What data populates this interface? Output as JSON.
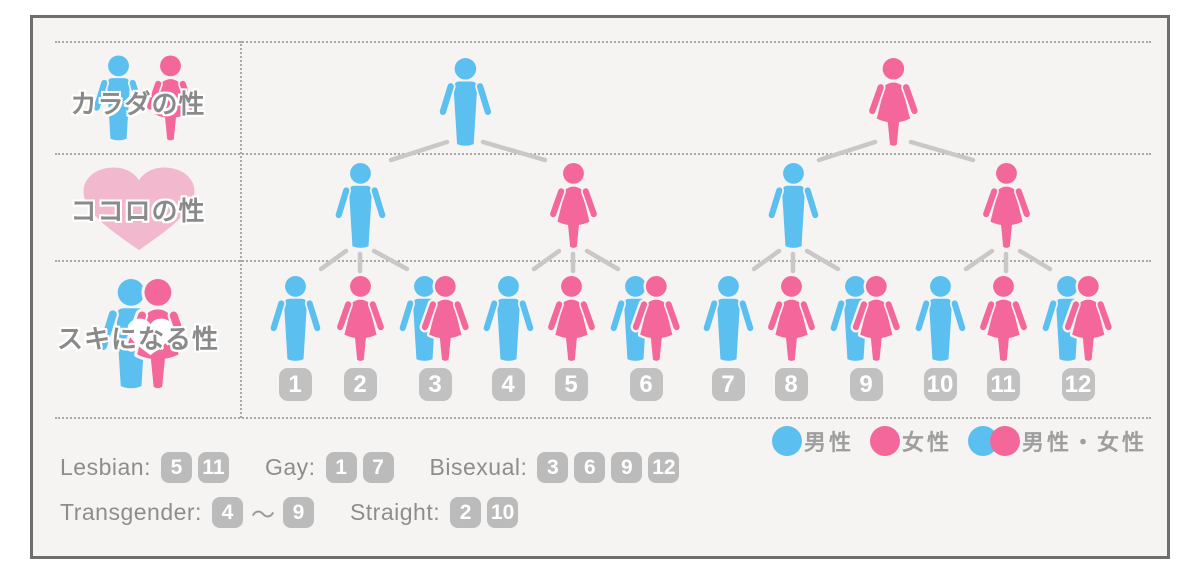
{
  "colors": {
    "male": "#5BC0F0",
    "female": "#F4679B",
    "heart_light": "#F2B9CE",
    "white_heart": "#FFFFFF",
    "connector": "#C8C8C8",
    "number_badge": "#C1C1C1",
    "text_gray": "#8D8D8D",
    "board_background": "#F6F4F2",
    "board_border": "#6E6E6E"
  },
  "rows": [
    {
      "id": "body",
      "label": "カラダの性"
    },
    {
      "id": "heart",
      "label": "ココロの性"
    },
    {
      "id": "attraction",
      "label": "スキになる性"
    }
  ],
  "tree": {
    "level1": [
      "male",
      "female"
    ],
    "level2": [
      "male",
      "female",
      "male",
      "female"
    ],
    "level3": [
      {
        "num": "1",
        "type": "male"
      },
      {
        "num": "2",
        "type": "female"
      },
      {
        "num": "3",
        "type": "couple"
      },
      {
        "num": "4",
        "type": "male"
      },
      {
        "num": "5",
        "type": "female"
      },
      {
        "num": "6",
        "type": "couple"
      },
      {
        "num": "7",
        "type": "male"
      },
      {
        "num": "8",
        "type": "female"
      },
      {
        "num": "9",
        "type": "couple"
      },
      {
        "num": "10",
        "type": "male"
      },
      {
        "num": "11",
        "type": "female"
      },
      {
        "num": "12",
        "type": "couple"
      }
    ]
  },
  "legend": [
    {
      "type": "male",
      "label": "男性"
    },
    {
      "type": "female",
      "label": "女性"
    },
    {
      "type": "couple",
      "label": "男性・女性"
    }
  ],
  "orientations": {
    "rows": [
      [
        {
          "name": "Lesbian:",
          "numbers": [
            "5",
            "11"
          ]
        },
        {
          "name": "Gay:",
          "numbers": [
            "1",
            "7"
          ]
        },
        {
          "name": "Bisexual:",
          "numbers": [
            "3",
            "6",
            "9",
            "12"
          ]
        }
      ],
      [
        {
          "name": "Transgender:",
          "numbers": [
            "4",
            "9"
          ],
          "separator": "〜"
        },
        {
          "name": "Straight:",
          "numbers": [
            "2",
            "10"
          ]
        }
      ]
    ]
  }
}
